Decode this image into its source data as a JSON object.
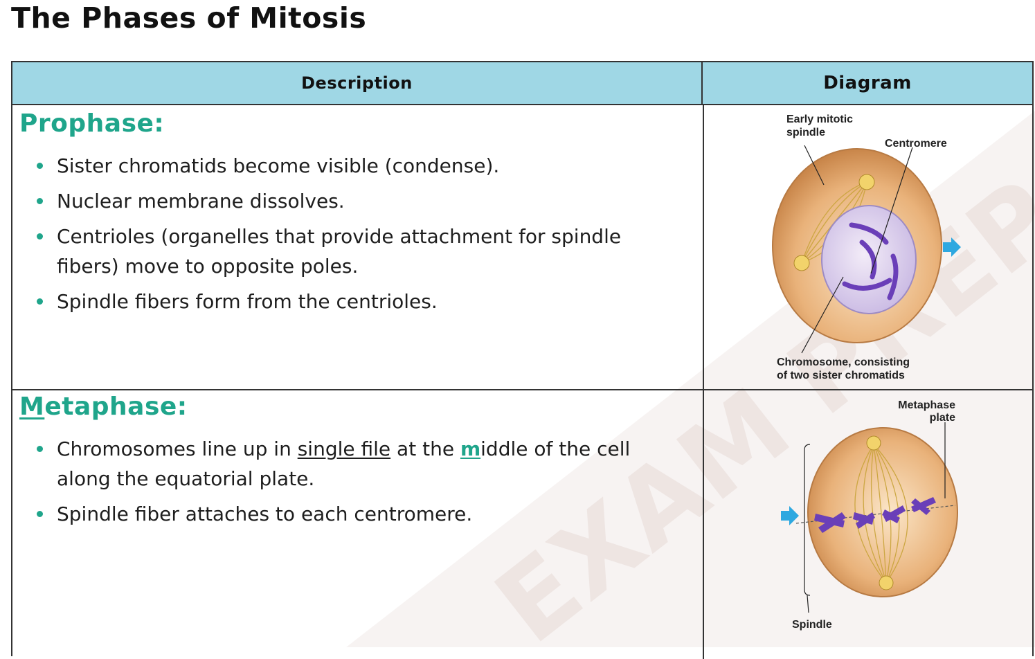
{
  "page": {
    "title": "The Phases of Mitosis"
  },
  "table": {
    "headers": {
      "description": "Description",
      "diagram": "Diagram"
    },
    "rows": [
      {
        "phase": "Prophase:",
        "bullets": [
          "Sister chromatids become visible (condense).",
          "Nuclear membrane dissolves.",
          "Centrioles (organelles that provide attachment for spindle fibers) move to opposite poles.",
          "Spindle fibers form from the centrioles."
        ],
        "diagram_labels": {
          "spindle_line1": "Early mitotic",
          "spindle_line2": "spindle",
          "centromere": "Centromere",
          "chromosome_line1": "Chromosome, consisting",
          "chromosome_line2": "of two sister chromatids"
        }
      },
      {
        "phase_first_letter": "M",
        "phase_rest": "etaphase:",
        "bullet1_a": "Chromosomes line up in ",
        "bullet1_b": "single file",
        "bullet1_c": " at the ",
        "bullet1_d": "m",
        "bullet1_e": "iddle of the cell along the equatorial plate.",
        "bullet2": "Spindle fiber attaches to each centromere.",
        "diagram_labels": {
          "plate_line1": "Metaphase",
          "plate_line2": "plate",
          "spindle": "Spindle"
        }
      }
    ]
  },
  "watermark": {
    "text": "EXAM PREP"
  },
  "colors": {
    "header_bg": "#9fd7e5",
    "phase_title": "#1fa58b",
    "cell_fill": "#e2a56a",
    "chromosome": "#6a3fb8",
    "arrow": "#2ea8e0"
  }
}
